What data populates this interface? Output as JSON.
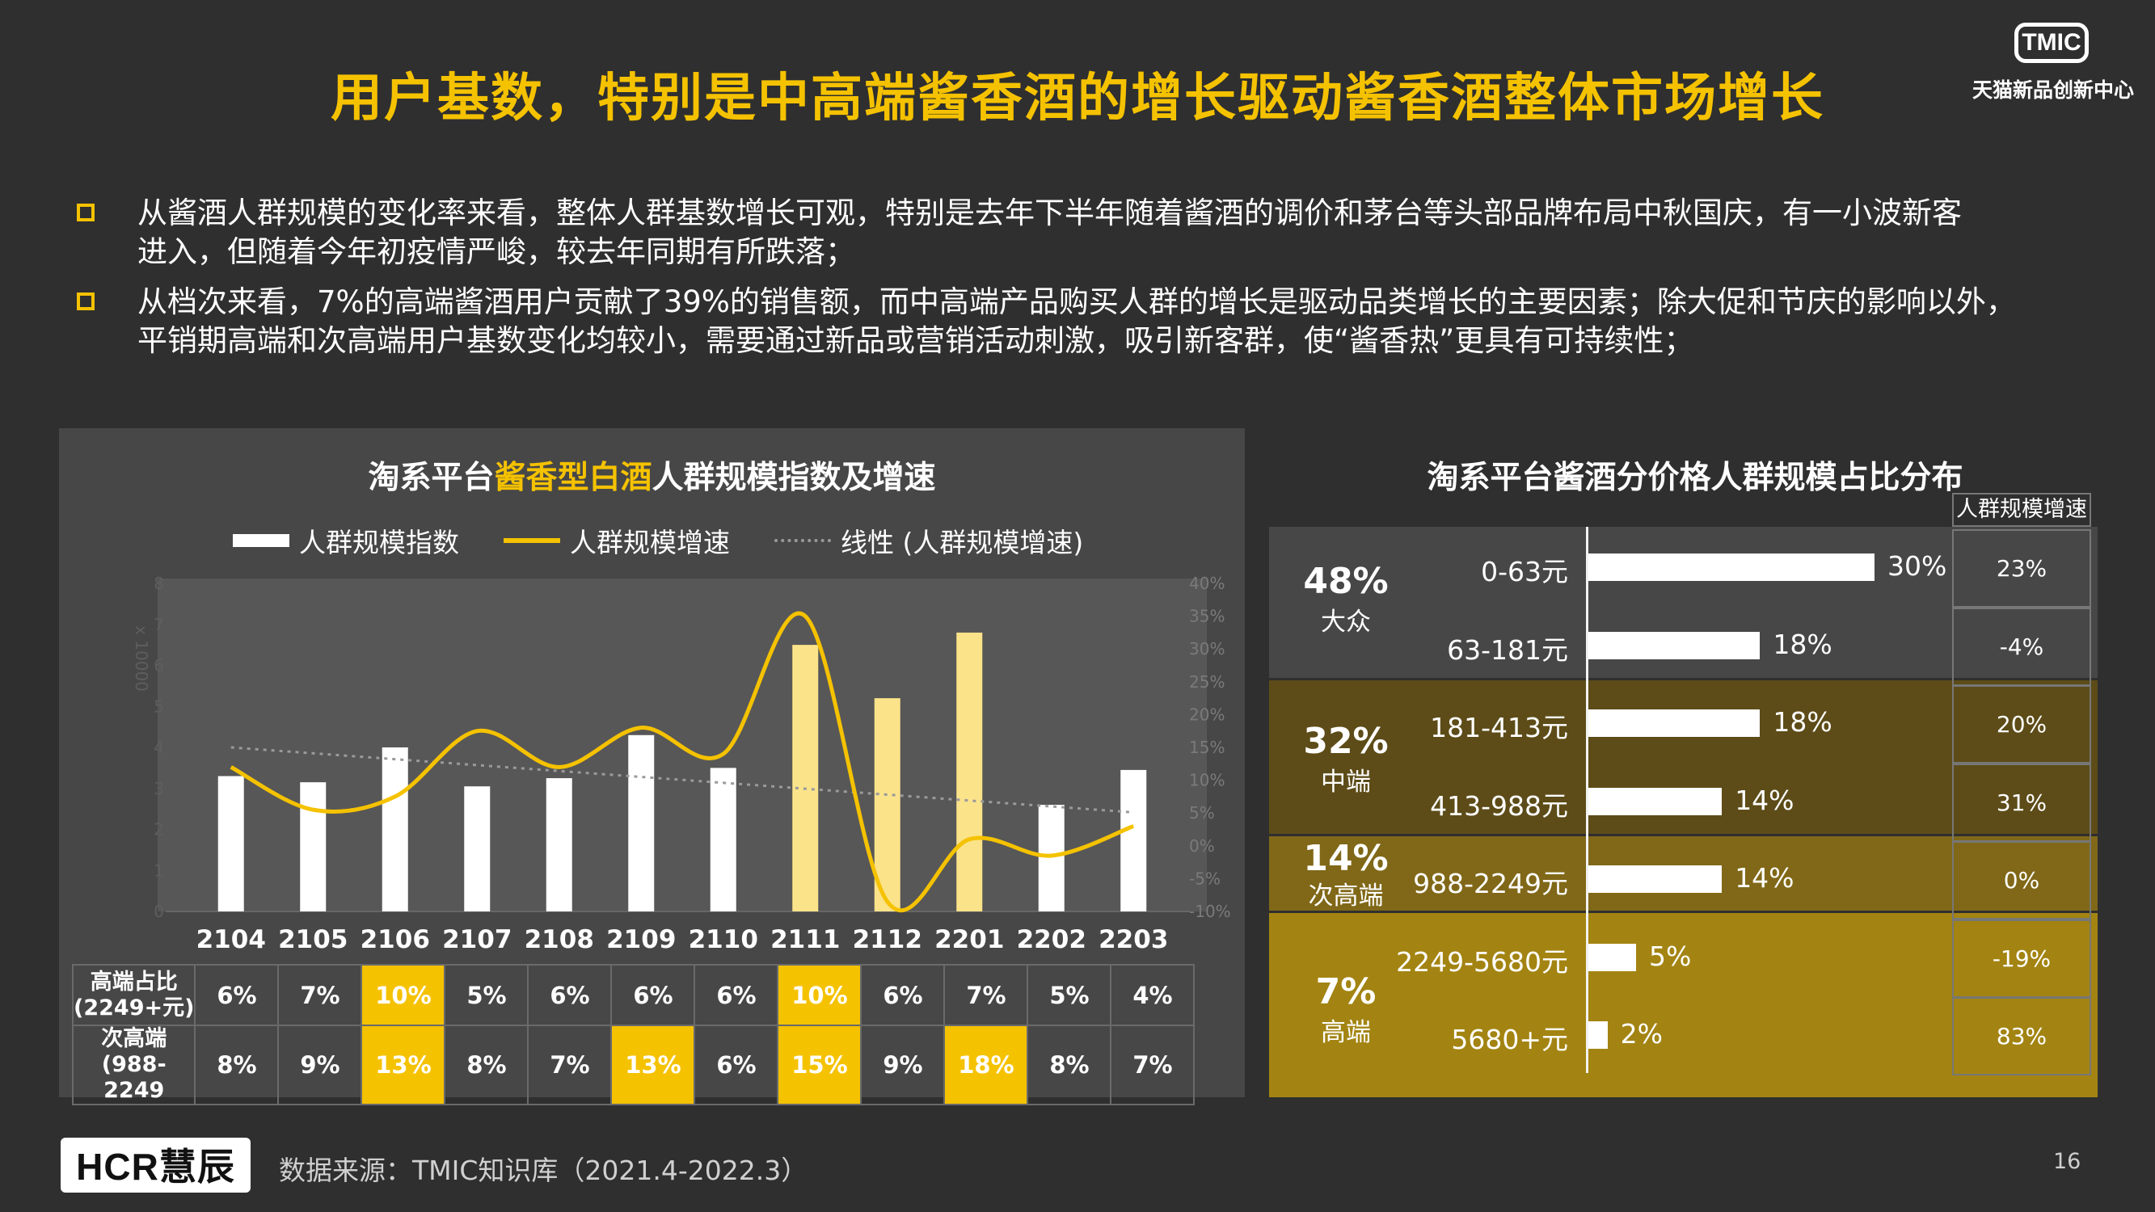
{
  "title": "用户基数，特别是中高端酱香酒的增长驱动酱香酒整体市场增长",
  "logo": {
    "mark": "TMIC",
    "name": "天猫新品创新中心"
  },
  "bullets": [
    {
      "line1": "从酱酒人群规模的变化率来看，整体人群基数增长可观，特别是去年下半年随着酱酒的调价和茅台等头部品牌布局中秋国庆，有一小波新客",
      "line2": "进入，但随着今年初疫情严峻，较去年同期有所跌落；"
    },
    {
      "line1": "从档次来看，7%的高端酱酒用户贡献了39%的销售额，而中高端产品购买人群的增长是驱动品类增长的主要因素；除大促和节庆的影响以外，",
      "line2": "平销期高端和次高端用户基数变化均较小，需要通过新品或营销活动刺激，吸引新客群，使“酱香热”更具有可持续性；"
    }
  ],
  "left_chart": {
    "title_pre": "淘系平台",
    "title_hl": "酱香型白酒",
    "title_post": "人群规模指数及增速",
    "legend": {
      "bar": "人群规模指数",
      "line": "人群规模增速",
      "trend": "线性 (人群规模增速)"
    },
    "left_axis_unit": "x 10000",
    "colors": {
      "bar": "#ffffff",
      "bar_highlight": "#fbe38a",
      "line": "#f5c200",
      "trend": "#9a9a9a",
      "highlight": "#f5c200"
    },
    "table": {
      "row1_label": "高端占比\n(2249+元)",
      "row1": [
        "6%",
        "7%",
        "10%",
        "5%",
        "6%",
        "6%",
        "6%",
        "10%",
        "6%",
        "7%",
        "5%",
        "4%"
      ],
      "row1_hl": [
        false,
        false,
        true,
        false,
        false,
        false,
        false,
        true,
        false,
        false,
        false,
        false
      ],
      "row2_label": "次高端\n(988-2249",
      "row2": [
        "8%",
        "9%",
        "13%",
        "8%",
        "7%",
        "13%",
        "6%",
        "15%",
        "9%",
        "18%",
        "8%",
        "7%"
      ],
      "row2_hl": [
        false,
        false,
        true,
        false,
        false,
        true,
        false,
        true,
        false,
        true,
        false,
        false
      ]
    }
  },
  "chart_data": [
    {
      "type": "bar",
      "title": "淘系平台酱香型白酒人群规模指数及增速",
      "categories": [
        "2104",
        "2105",
        "2106",
        "2107",
        "2108",
        "2109",
        "2110",
        "2111",
        "2112",
        "2201",
        "2202",
        "2203"
      ],
      "y_left": {
        "label": "x 10000",
        "ylim": [
          0,
          8
        ],
        "ticks": [
          0,
          1,
          2,
          3,
          4,
          5,
          6,
          7,
          8
        ]
      },
      "y_right": {
        "ylim": [
          -10,
          40
        ],
        "ticks": [
          "-10%",
          "-5%",
          "0%",
          "5%",
          "10%",
          "15%",
          "20%",
          "25%",
          "30%",
          "35%",
          "40%"
        ]
      },
      "series": [
        {
          "name": "人群规模指数",
          "type": "bar",
          "axis": "left",
          "values": [
            3.3,
            3.15,
            4.0,
            3.05,
            3.25,
            4.3,
            3.5,
            6.5,
            5.2,
            6.8,
            2.6,
            3.45
          ],
          "highlight": [
            false,
            false,
            false,
            false,
            false,
            false,
            false,
            true,
            true,
            true,
            false,
            false
          ]
        },
        {
          "name": "人群规模增速",
          "type": "line",
          "axis": "right",
          "values": [
            12,
            5.5,
            7.5,
            17.5,
            12,
            18,
            14,
            35,
            -8.5,
            1,
            -1.5,
            3
          ]
        },
        {
          "name": "线性 (人群规模增速)",
          "type": "line",
          "axis": "right",
          "values": [
            15,
            14.1,
            13.2,
            12.3,
            11.4,
            10.5,
            9.6,
            8.7,
            7.8,
            6.9,
            6.0,
            5.1
          ]
        }
      ]
    },
    {
      "type": "bar",
      "title": "淘系平台酱酒分价格人群规模占比分布",
      "categories": [
        "0-63元",
        "63-181元",
        "181-413元",
        "413-988元",
        "988-2249元",
        "2249-5680元",
        "5680+元"
      ],
      "values": [
        30,
        18,
        18,
        14,
        14,
        5,
        2
      ],
      "labels": [
        "30%",
        "18%",
        "18%",
        "14%",
        "14%",
        "5%",
        "2%"
      ],
      "growth_header": "人群规模增速",
      "growth": [
        "23%",
        "-4%",
        "20%",
        "31%",
        "0%",
        "-19%",
        "83%"
      ]
    }
  ],
  "right_chart": {
    "segments": [
      {
        "pct": "48%",
        "name": "大众",
        "color": "#474747"
      },
      {
        "pct": "32%",
        "name": "中端",
        "color": "#5d4c18"
      },
      {
        "pct": "14%",
        "name": "次高端",
        "color": "#806818"
      },
      {
        "pct": "7%",
        "name": "高端",
        "color": "#a38412"
      }
    ]
  },
  "footer": {
    "brand": "HCR慧辰",
    "source": "数据来源：TMIC知识库（2021.4-2022.3）",
    "page": "16"
  }
}
